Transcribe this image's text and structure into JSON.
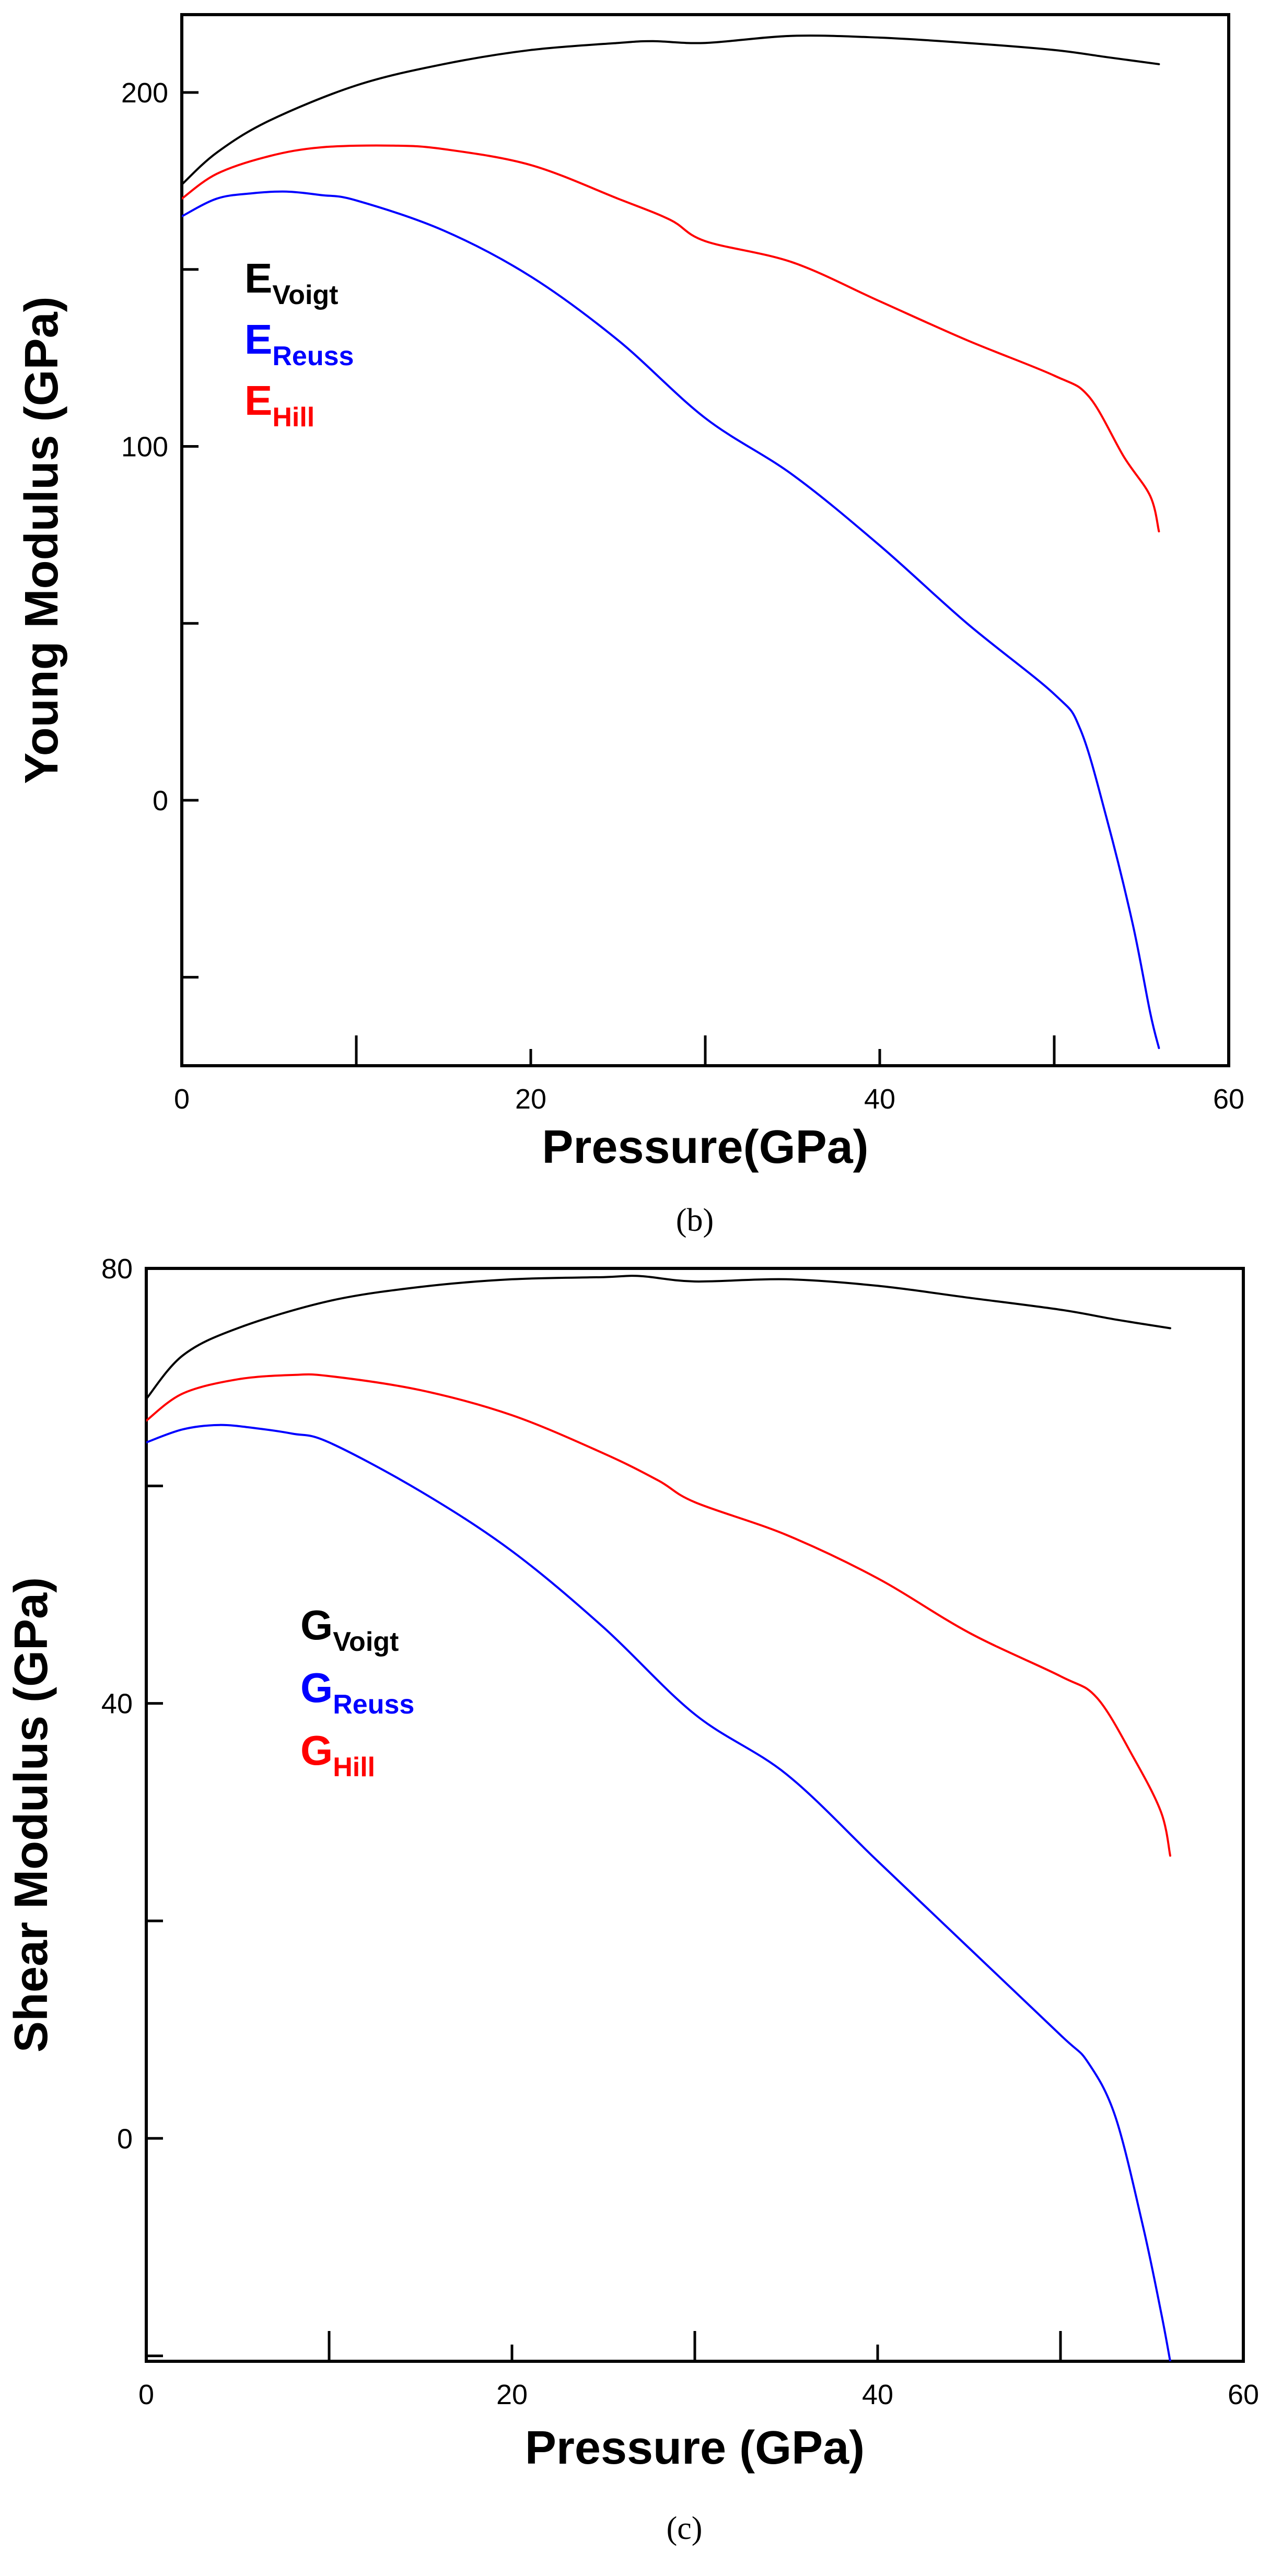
{
  "chart_data": [
    {
      "type": "line",
      "panel_label": "(b)",
      "xlabel": "Pressure(GPa)",
      "ylabel": "Young Modulus (GPa)",
      "xlim": [
        0,
        60
      ],
      "ylim": [
        -75,
        222
      ],
      "x_ticks": [
        0,
        20,
        40,
        60
      ],
      "x_minor_ticks": [
        10,
        30,
        50
      ],
      "y_ticks": [
        0,
        100,
        200
      ],
      "y_minor_ticks": [
        -50,
        50,
        150
      ],
      "grid": false,
      "legend_placement": "upper-left",
      "series": [
        {
          "name": "E",
          "subscript": "Voigt",
          "color": "#000000",
          "x": [
            0,
            2,
            5,
            10,
            15,
            20,
            25,
            27,
            30,
            35,
            40,
            45,
            50,
            53,
            56
          ],
          "y": [
            174,
            183,
            192,
            202,
            208,
            212,
            214,
            214.5,
            214,
            216,
            215.5,
            214,
            212,
            210,
            208
          ]
        },
        {
          "name": "E",
          "subscript": "Reuss",
          "color": "#0000ff",
          "x": [
            0,
            2,
            4,
            6,
            8,
            10,
            15,
            20,
            25,
            30,
            35,
            40,
            45,
            50,
            51.5,
            53,
            54.5,
            55.5,
            56
          ],
          "y": [
            165,
            170,
            171.5,
            172,
            171,
            169.5,
            161,
            148,
            130,
            108,
            92,
            72,
            50,
            30,
            20,
            -5,
            -35,
            -60,
            -70
          ]
        },
        {
          "name": "E",
          "subscript": "Hill",
          "color": "#ff0000",
          "x": [
            0,
            2,
            5,
            8,
            12,
            15,
            20,
            25,
            28,
            30,
            35,
            40,
            45,
            50,
            52,
            54,
            55.5,
            56
          ],
          "y": [
            170,
            177,
            182,
            184.5,
            185,
            184,
            179.5,
            170,
            164,
            158,
            152,
            141,
            130,
            120,
            114,
            97,
            86,
            76
          ]
        }
      ]
    },
    {
      "type": "line",
      "panel_label": "(c)",
      "xlabel": "Pressure (GPa)",
      "ylabel": "Shear Modulus (GPa)",
      "xlim": [
        0,
        60
      ],
      "ylim": [
        -20.5,
        80
      ],
      "x_ticks": [
        0,
        20,
        40,
        60
      ],
      "x_minor_ticks": [
        10,
        30,
        50
      ],
      "y_ticks": [
        0,
        40,
        80
      ],
      "y_minor_ticks": [
        -20,
        20,
        60
      ],
      "grid": false,
      "legend_placement": "upper-left",
      "series": [
        {
          "name": "G",
          "subscript": "Voigt",
          "color": "#000000",
          "x": [
            0,
            2,
            5,
            10,
            15,
            20,
            25,
            27,
            30,
            35,
            40,
            45,
            50,
            53,
            56
          ],
          "y": [
            68,
            72,
            74.5,
            77,
            78.3,
            79,
            79.2,
            79.3,
            78.8,
            79,
            78.4,
            77.3,
            76.2,
            75.3,
            74.5
          ]
        },
        {
          "name": "G",
          "subscript": "Reuss",
          "color": "#0000ff",
          "x": [
            0,
            2,
            4,
            6,
            8,
            10,
            15,
            20,
            25,
            30,
            35,
            40,
            45,
            50,
            51.5,
            53,
            54.5,
            55.5,
            56
          ],
          "y": [
            64,
            65.2,
            65.6,
            65.3,
            64.8,
            64,
            59.5,
            54,
            47,
            39,
            33.5,
            25.5,
            17.5,
            9.5,
            7,
            2,
            -8,
            -16,
            -20.5
          ]
        },
        {
          "name": "G",
          "subscript": "Hill",
          "color": "#ff0000",
          "x": [
            0,
            2,
            5,
            8,
            10,
            15,
            20,
            25,
            28,
            30,
            35,
            40,
            45,
            50,
            52,
            54,
            55.5,
            56
          ],
          "y": [
            66,
            68.5,
            69.8,
            70.2,
            70.1,
            68.8,
            66.5,
            63,
            60.5,
            58.5,
            55.5,
            51.5,
            46.5,
            42.5,
            40.5,
            35,
            30,
            26
          ]
        }
      ]
    }
  ]
}
